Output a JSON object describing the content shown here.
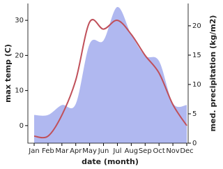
{
  "chart_data": {
    "type": "area-line",
    "categories": [
      "Jan",
      "Feb",
      "Mar",
      "Apr",
      "May",
      "Jun",
      "Jul",
      "Aug",
      "Sep",
      "Oct",
      "Nov",
      "Dec"
    ],
    "x_label": "date (month)",
    "y_label": "max temp (C)",
    "y2_label": "med. precipitation (kg/m2)",
    "series": [
      {
        "name": "med. precipitation",
        "type": "area",
        "axis": "y2",
        "color": "#b0b8f0",
        "values": [
          4.8,
          4.8,
          6.5,
          6.7,
          16.9,
          17.5,
          23.2,
          18.5,
          14.9,
          14,
          6.8,
          6.5
        ]
      },
      {
        "name": "max temp",
        "type": "line",
        "axis": "y",
        "color": "#c0505a",
        "values": [
          -3,
          -3,
          3,
          13,
          29.5,
          27.5,
          30,
          26,
          20,
          15,
          6,
          0
        ]
      }
    ],
    "ylim": [
      -5,
      34.8
    ],
    "yticks": [
      0,
      10,
      20,
      30
    ],
    "y2lim": [
      0,
      23.8
    ],
    "y2ticks": [
      0,
      5,
      10,
      15,
      20
    ]
  }
}
